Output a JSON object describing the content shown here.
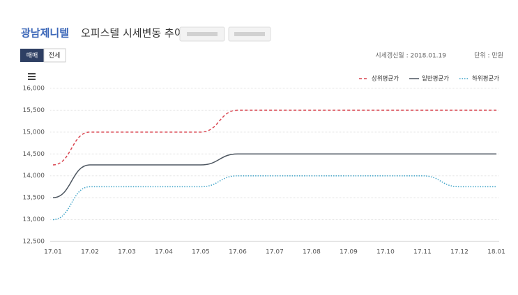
{
  "header": {
    "title_name": "광남제니텔",
    "title_rest": "오피스텔 시세변동 추이",
    "tabs": [
      "매매",
      "전세"
    ],
    "updated": "시세갱신일 : 2018.01.19",
    "unit": "단위 : 만원"
  },
  "chart_data": {
    "type": "line",
    "categories": [
      "17.01",
      "17.02",
      "17.03",
      "17.04",
      "17.05",
      "17.06",
      "17.07",
      "17.08",
      "17.09",
      "17.10",
      "17.11",
      "17.12",
      "18.01"
    ],
    "series": [
      {
        "name": "상위평균가",
        "color": "#d9444f",
        "dash": "4,3",
        "values": [
          14250,
          15000,
          15000,
          15000,
          15000,
          15500,
          15500,
          15500,
          15500,
          15500,
          15500,
          15500,
          15500
        ]
      },
      {
        "name": "일반평균가",
        "color": "#4d5660",
        "dash": "none",
        "values": [
          13500,
          14250,
          14250,
          14250,
          14250,
          14500,
          14500,
          14500,
          14500,
          14500,
          14500,
          14500,
          14500
        ]
      },
      {
        "name": "하위평균가",
        "color": "#3ea3c8",
        "dash": "1.5,2",
        "values": [
          13000,
          13750,
          13750,
          13750,
          13750,
          14000,
          14000,
          14000,
          14000,
          14000,
          14000,
          13750,
          13750
        ]
      }
    ],
    "ylim": [
      12500,
      16000
    ],
    "yticks": [
      {
        "value": 12500,
        "label": "12,500"
      },
      {
        "value": 13000,
        "label": "13,000"
      },
      {
        "value": 13500,
        "label": "13,500"
      },
      {
        "value": 14000,
        "label": "14,000"
      },
      {
        "value": 14500,
        "label": "14,500"
      },
      {
        "value": 15000,
        "label": "15,000"
      },
      {
        "value": 15500,
        "label": "15,500"
      },
      {
        "value": 16000,
        "label": "16,000"
      }
    ],
    "grid": true,
    "legend": "top-right"
  }
}
